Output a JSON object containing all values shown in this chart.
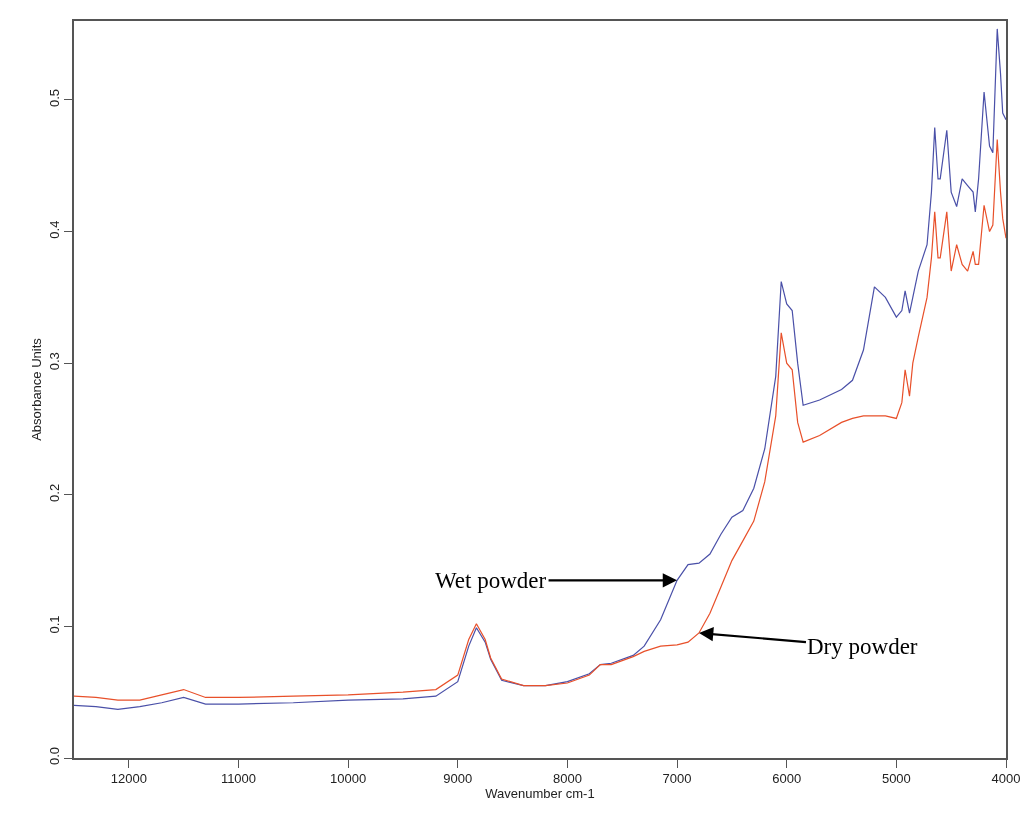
{
  "chart_data": {
    "type": "line",
    "xlabel": "Wavenumber cm-1",
    "ylabel": "Absorbance Units",
    "x": [
      12500,
      12300,
      12100,
      11900,
      11700,
      11500,
      11300,
      11000,
      10500,
      10000,
      9500,
      9200,
      9000,
      8900,
      8830,
      8750,
      8700,
      8600,
      8400,
      8200,
      8000,
      7800,
      7700,
      7600,
      7400,
      7300,
      7150,
      7000,
      6900,
      6800,
      6700,
      6600,
      6500,
      6400,
      6300,
      6200,
      6100,
      6050,
      6000,
      5950,
      5900,
      5850,
      5700,
      5500,
      5400,
      5300,
      5200,
      5100,
      5000,
      4950,
      4920,
      4880,
      4850,
      4800,
      4720,
      4680,
      4650,
      4620,
      4600,
      4540,
      4500,
      4450,
      4400,
      4350,
      4300,
      4280,
      4250,
      4200,
      4150,
      4120,
      4080,
      4050,
      4030,
      4000
    ],
    "series": [
      {
        "color": "#4a50a8",
        "values": [
          0.04,
          0.039,
          0.037,
          0.039,
          0.042,
          0.046,
          0.041,
          0.041,
          0.042,
          0.044,
          0.045,
          0.047,
          0.058,
          0.085,
          0.099,
          0.088,
          0.075,
          0.059,
          0.055,
          0.055,
          0.058,
          0.064,
          0.071,
          0.072,
          0.078,
          0.085,
          0.105,
          0.135,
          0.147,
          0.148,
          0.155,
          0.17,
          0.183,
          0.188,
          0.205,
          0.235,
          0.29,
          0.362,
          0.345,
          0.34,
          0.3,
          0.268,
          0.272,
          0.28,
          0.287,
          0.31,
          0.358,
          0.35,
          0.335,
          0.34,
          0.355,
          0.338,
          0.35,
          0.37,
          0.39,
          0.43,
          0.479,
          0.44,
          0.44,
          0.477,
          0.43,
          0.419,
          0.44,
          0.435,
          0.43,
          0.415,
          0.44,
          0.506,
          0.465,
          0.46,
          0.554,
          0.52,
          0.49,
          0.485
        ]
      },
      {
        "color": "#e8502a",
        "values": [
          0.047,
          0.046,
          0.044,
          0.044,
          0.048,
          0.052,
          0.046,
          0.046,
          0.047,
          0.048,
          0.05,
          0.052,
          0.063,
          0.09,
          0.102,
          0.09,
          0.076,
          0.06,
          0.055,
          0.055,
          0.057,
          0.063,
          0.071,
          0.071,
          0.077,
          0.081,
          0.085,
          0.086,
          0.088,
          0.095,
          0.11,
          0.13,
          0.15,
          0.165,
          0.18,
          0.21,
          0.26,
          0.323,
          0.3,
          0.295,
          0.255,
          0.24,
          0.245,
          0.255,
          0.258,
          0.26,
          0.26,
          0.26,
          0.258,
          0.27,
          0.295,
          0.275,
          0.3,
          0.32,
          0.35,
          0.38,
          0.415,
          0.38,
          0.38,
          0.415,
          0.37,
          0.39,
          0.375,
          0.37,
          0.385,
          0.375,
          0.375,
          0.42,
          0.4,
          0.405,
          0.47,
          0.43,
          0.41,
          0.395
        ]
      }
    ],
    "xlim": [
      12500,
      4000
    ],
    "xticks": [
      12000,
      11000,
      10000,
      9000,
      8000,
      7000,
      6000,
      5000,
      4000
    ],
    "ylim": [
      0,
      0.56
    ],
    "yticks": [
      {
        "value": 0,
        "label": "0.0"
      },
      0.1,
      0.2,
      0.3,
      0.4,
      0.5
    ],
    "annotations": [
      {
        "text": "Wet powder",
        "x": 7000,
        "y": 0.135
      },
      {
        "text": "Dry powder",
        "x": 6800,
        "y": 0.095
      }
    ],
    "marker": "none",
    "line_style": "solid"
  }
}
